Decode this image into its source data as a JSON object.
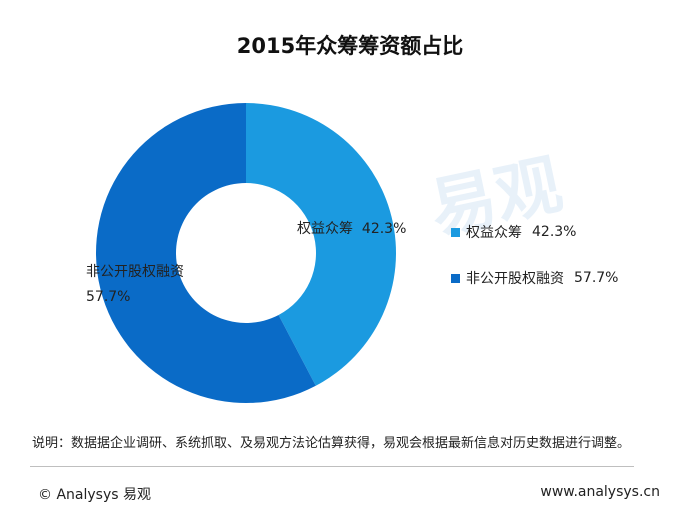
{
  "chart_data": {
    "type": "pie",
    "title": "2015年众筹筹资额占比",
    "slices": [
      {
        "name": "权益众筹",
        "value": 42.3,
        "label": "42.3%",
        "color": "#1b9ae0"
      },
      {
        "name": "非公开股权融资",
        "value": 57.7,
        "label": "57.7%",
        "color": "#0a6bc7"
      }
    ],
    "donut": true,
    "legend_position": "right"
  },
  "watermark": {
    "text": "易观"
  },
  "note": "说明：数据据企业调研、系统抓取、及易观方法论估算获得，易观会根据最新信息对历史数据进行调整。",
  "footer": {
    "copyright": "© Analysys 易观",
    "url": "www.analysys.cn"
  }
}
